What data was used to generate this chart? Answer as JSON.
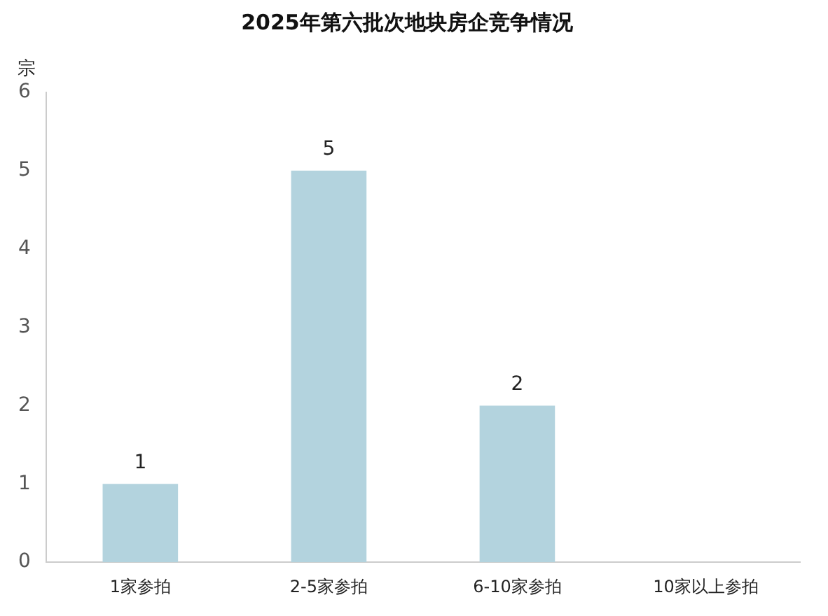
{
  "chart_data": {
    "type": "bar",
    "title": "2025年第六批次地块房企竞争情况",
    "ylabel": "宗",
    "categories": [
      "1家参拍",
      "2-5家参拍",
      "6-10家参拍",
      "10家以上参拍"
    ],
    "values": [
      1,
      5,
      2,
      0
    ],
    "value_labels": [
      "1",
      "5",
      "2",
      null
    ],
    "color": "#b3d3de",
    "ylim": [
      0,
      6
    ],
    "yticks": [
      0,
      1,
      2,
      3,
      4,
      5,
      6
    ],
    "grid": false,
    "legend": false
  }
}
